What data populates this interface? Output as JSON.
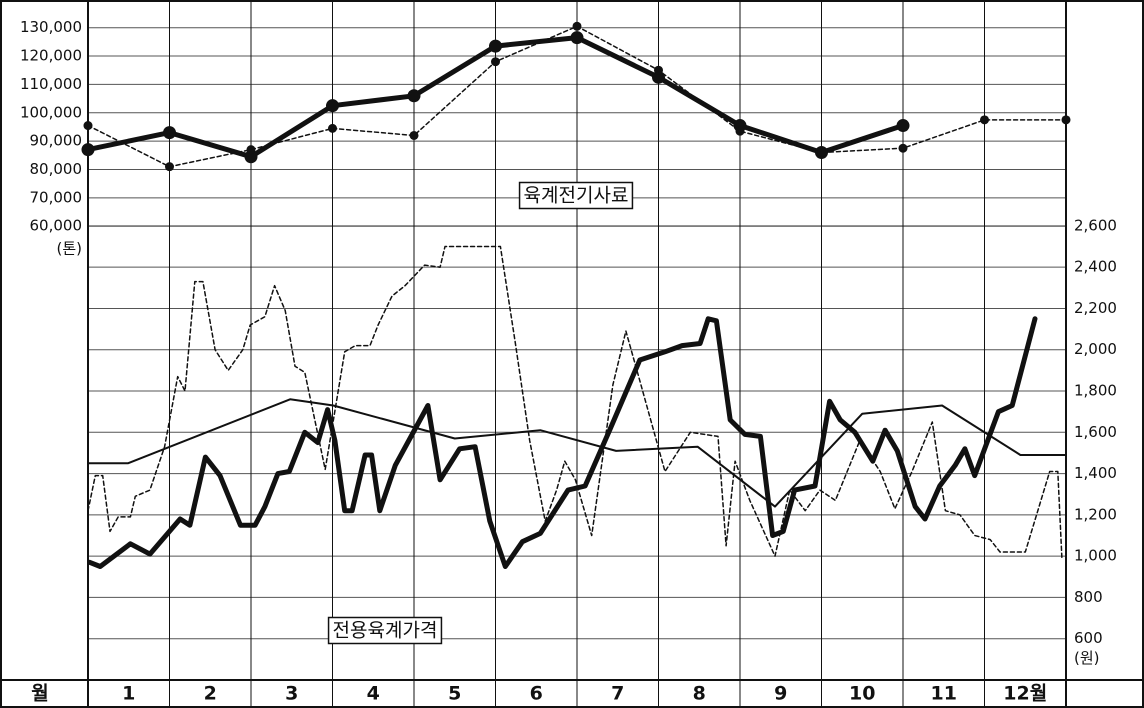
{
  "chart_data": {
    "type": "line",
    "x_label": "월",
    "categories": [
      "1",
      "2",
      "3",
      "4",
      "5",
      "6",
      "7",
      "8",
      "9",
      "10",
      "11",
      "12월"
    ],
    "xlim": [
      0,
      12
    ],
    "ylim": [
      -100000,
      138000
    ],
    "yticks": [
      {
        "value": 130000,
        "label": "130,000"
      },
      {
        "value": 120000,
        "label": "120,000"
      },
      {
        "value": 110000,
        "label": "110,000"
      },
      {
        "value": 100000,
        "label": "100,000"
      },
      {
        "value": 90000,
        "label": "90,000"
      },
      {
        "value": 80000,
        "label": "80,000"
      },
      {
        "value": 70000,
        "label": "70,000"
      },
      {
        "value": 60000,
        "label": "60,000"
      }
    ],
    "y_unit": "(톤)",
    "y2lim": [
      400,
      3670
    ],
    "y2ticks": [
      {
        "value": 2600,
        "label": "2,600"
      },
      {
        "value": 2400,
        "label": "2,400"
      },
      {
        "value": 2200,
        "label": "2,200"
      },
      {
        "value": 2000,
        "label": "2,000"
      },
      {
        "value": 1800,
        "label": "1,800"
      },
      {
        "value": 1600,
        "label": "1,600"
      },
      {
        "value": 1400,
        "label": "1,400"
      },
      {
        "value": 1200,
        "label": "1,200"
      },
      {
        "value": 1000,
        "label": "1,000"
      },
      800,
      600
    ],
    "y2_unit": "(원)",
    "grid": true,
    "annotations": [
      "육계전기사료",
      "전용육계가격"
    ],
    "series": [
      {
        "color": "#111111",
        "line_style": "bold",
        "marker": true,
        "axis": "y",
        "x": [
          0,
          1,
          2,
          3,
          4,
          5,
          6,
          7,
          8,
          9,
          10
        ],
        "values": [
          87000,
          93000,
          84500,
          102500,
          106000,
          123500,
          126500,
          112500,
          95500,
          86000,
          95500
        ]
      },
      {
        "color": "#111111",
        "line_style": "dashed",
        "marker": true,
        "axis": "y",
        "x": [
          0,
          1,
          2,
          3,
          4,
          5,
          6,
          7,
          8,
          9,
          10,
          11,
          12
        ],
        "values": [
          95500,
          81000,
          87000,
          94500,
          92000,
          118000,
          130500,
          115000,
          93500,
          86000,
          87500,
          97500,
          97500
        ]
      },
      {
        "color": "#111111",
        "line_style": "bold",
        "marker": false,
        "axis": "y2",
        "x": [
          0.02,
          0.15,
          0.52,
          0.76,
          1.13,
          1.25,
          1.44,
          1.62,
          1.87,
          2.05,
          2.17,
          2.33,
          2.47,
          2.66,
          2.82,
          2.94,
          3.03,
          3.15,
          3.24,
          3.4,
          3.48,
          3.58,
          3.77,
          4.17,
          4.32,
          4.56,
          4.75,
          4.93,
          5.12,
          5.33,
          5.55,
          5.89,
          6.1,
          6.4,
          6.77,
          7.08,
          7.29,
          7.51,
          7.61,
          7.71,
          7.88,
          8.06,
          8.25,
          8.4,
          8.53,
          8.67,
          8.92,
          9.1,
          9.23,
          9.41,
          9.63,
          9.78,
          9.93,
          10.15,
          10.27,
          10.45,
          10.64,
          10.76,
          10.88,
          11.17,
          11.34,
          11.62
        ],
        "values": [
          970,
          950,
          1060,
          1010,
          1180,
          1150,
          1480,
          1390,
          1150,
          1150,
          1240,
          1400,
          1410,
          1600,
          1550,
          1710,
          1560,
          1220,
          1220,
          1490,
          1490,
          1220,
          1440,
          1730,
          1370,
          1520,
          1530,
          1170,
          950,
          1070,
          1110,
          1320,
          1340,
          1610,
          1950,
          1990,
          2020,
          2030,
          2150,
          2140,
          1660,
          1590,
          1580,
          1100,
          1120,
          1320,
          1340,
          1750,
          1660,
          1600,
          1460,
          1610,
          1510,
          1240,
          1180,
          1340,
          1440,
          1520,
          1390,
          1700,
          1730,
          2150
        ]
      },
      {
        "color": "#111111",
        "line_style": "solid",
        "marker": false,
        "axis": "y2",
        "x": [
          0,
          0.49,
          2.48,
          3.01,
          4.5,
          5.55,
          6.48,
          7.48,
          8.43,
          9.5,
          10.48,
          11.44,
          12
        ],
        "values": [
          1450,
          1450,
          1760,
          1730,
          1570,
          1610,
          1510,
          1530,
          1240,
          1690,
          1730,
          1490,
          1490
        ]
      },
      {
        "color": "#111111",
        "line_style": "dashed",
        "marker": false,
        "axis": "y2",
        "x": [
          0,
          0.09,
          0.18,
          0.27,
          0.37,
          0.52,
          0.58,
          0.76,
          0.94,
          1.1,
          1.19,
          1.31,
          1.41,
          1.56,
          1.72,
          1.9,
          1.99,
          2.17,
          2.29,
          2.42,
          2.54,
          2.66,
          2.91,
          3.15,
          3.28,
          3.46,
          3.56,
          3.73,
          3.89,
          4.13,
          4.32,
          4.38,
          5.06,
          5.24,
          5.42,
          5.61,
          5.75,
          5.85,
          5.98,
          6.18,
          6.44,
          6.6,
          6.77,
          7.08,
          7.39,
          7.73,
          7.83,
          7.94,
          8.12,
          8.43,
          8.61,
          8.8,
          8.98,
          9.17,
          9.47,
          9.72,
          9.9,
          10.11,
          10.36,
          10.52,
          10.7,
          10.88,
          11.07,
          11.19,
          11.5,
          11.8,
          11.9,
          11.95
        ],
        "values": [
          1220,
          1390,
          1390,
          1120,
          1190,
          1190,
          1290,
          1320,
          1530,
          1870,
          1800,
          2330,
          2330,
          2000,
          1900,
          2000,
          2120,
          2160,
          2310,
          2190,
          1920,
          1890,
          1420,
          1990,
          2020,
          2020,
          2120,
          2260,
          2310,
          2410,
          2400,
          2500,
          2500,
          2040,
          1560,
          1170,
          1320,
          1460,
          1370,
          1100,
          1830,
          2090,
          1850,
          1410,
          1600,
          1580,
          1050,
          1460,
          1270,
          1000,
          1320,
          1220,
          1320,
          1270,
          1560,
          1410,
          1230,
          1410,
          1650,
          1220,
          1200,
          1100,
          1080,
          1020,
          1020,
          1410,
          1410,
          990
        ]
      }
    ]
  }
}
